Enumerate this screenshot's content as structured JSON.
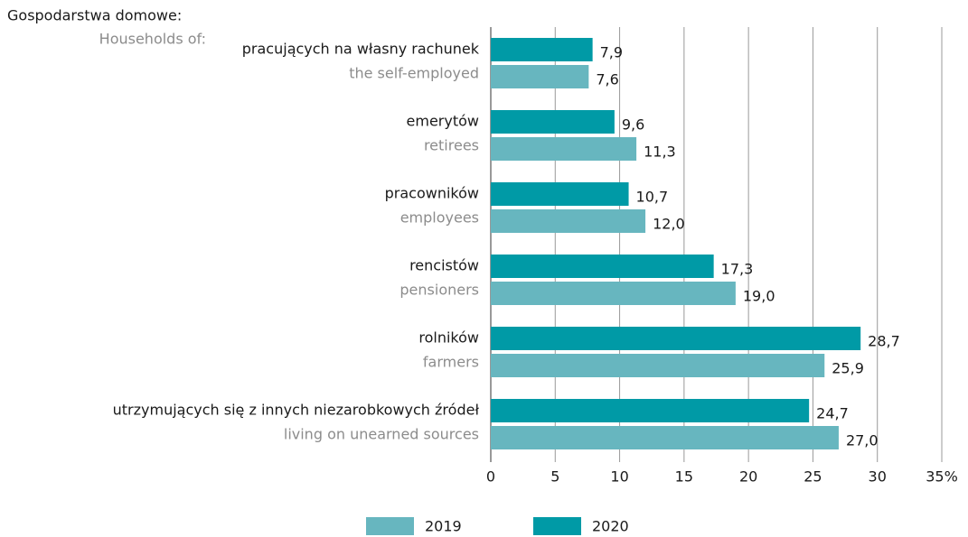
{
  "chart_data": {
    "type": "hbar",
    "header": "Gospodarstwa domowe:",
    "header_en": "Households of:",
    "categories": [
      "pracujących na własny rachunek",
      "emerytów",
      "pracowników",
      "rencistów",
      "rolników",
      "utrzymujących się z innych niezarobkowych źródeł"
    ],
    "categories_en": [
      "the self-employed",
      "retirees",
      "employees",
      "pensioners",
      "farmers",
      "living on unearned sources"
    ],
    "series": [
      {
        "name": "2019",
        "color": "#67b6bf",
        "values": [
          7.6,
          11.3,
          12.0,
          19.0,
          25.9,
          27.0
        ],
        "value_labels": [
          "7,6",
          "11,3",
          "12,0",
          "19,0",
          "25,9",
          "27,0"
        ]
      },
      {
        "name": "2020",
        "color": "#009aa6",
        "values": [
          7.9,
          9.6,
          10.7,
          17.3,
          28.7,
          24.7
        ],
        "value_labels": [
          "7,9",
          "9,6",
          "10,7",
          "17,3",
          "28,7",
          "24,7"
        ]
      }
    ],
    "xlim": [
      0,
      35
    ],
    "xticks": [
      0,
      5,
      10,
      15,
      20,
      25,
      30,
      {
        "value": 35,
        "label": "35%"
      }
    ],
    "grid": true
  }
}
